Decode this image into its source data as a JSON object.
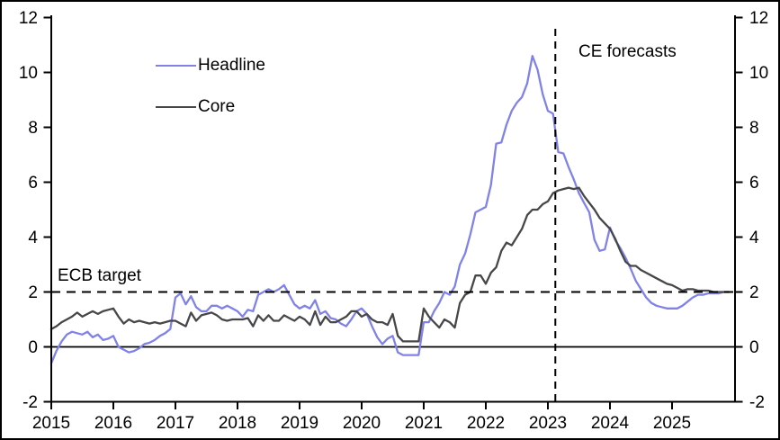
{
  "chart_data": {
    "type": "line",
    "title": "",
    "xlabel": "",
    "ylabel": "",
    "x_unit": "monthly",
    "x_start": "2015-01",
    "x_end": "2025-12",
    "xlim": [
      2015,
      2026.02
    ],
    "ylim": [
      -2,
      12
    ],
    "yticks": [
      -2,
      0,
      2,
      4,
      6,
      8,
      10,
      12
    ],
    "xticks": [
      2015,
      2016,
      2017,
      2018,
      2019,
      2020,
      2021,
      2022,
      2023,
      2024,
      2025
    ],
    "y_axis_sides": "both",
    "grid": false,
    "legend_position": "inside-top-left",
    "series": [
      {
        "name": "Headline",
        "color": "#8082e8",
        "values": [
          -0.6,
          -0.15,
          0.2,
          0.45,
          0.55,
          0.5,
          0.45,
          0.55,
          0.35,
          0.45,
          0.25,
          0.3,
          0.4,
          0.0,
          -0.1,
          -0.2,
          -0.15,
          -0.05,
          0.1,
          0.15,
          0.25,
          0.4,
          0.5,
          0.65,
          1.8,
          1.95,
          1.55,
          1.85,
          1.45,
          1.3,
          1.3,
          1.5,
          1.5,
          1.4,
          1.5,
          1.4,
          1.3,
          1.1,
          1.35,
          1.3,
          1.9,
          2.0,
          2.1,
          2.0,
          2.1,
          2.25,
          1.9,
          1.55,
          1.4,
          1.5,
          1.4,
          1.7,
          1.2,
          1.3,
          1.05,
          1.0,
          0.85,
          0.75,
          1.0,
          1.3,
          1.4,
          1.2,
          0.75,
          0.35,
          0.1,
          0.3,
          0.4,
          -0.2,
          -0.3,
          -0.3,
          -0.3,
          -0.3,
          0.9,
          0.9,
          1.3,
          1.6,
          2.0,
          1.9,
          2.2,
          3.0,
          3.4,
          4.1,
          4.9,
          5.0,
          5.1,
          5.9,
          7.4,
          7.45,
          8.1,
          8.6,
          8.9,
          9.1,
          9.6,
          10.6,
          10.1,
          9.2,
          8.6,
          8.5,
          7.1,
          7.05,
          6.55,
          6.1,
          5.6,
          5.25,
          4.9,
          3.9,
          3.5,
          3.55,
          4.35,
          3.9,
          3.6,
          3.25,
          2.85,
          2.4,
          2.1,
          1.8,
          1.6,
          1.5,
          1.45,
          1.4,
          1.4,
          1.4,
          1.5,
          1.65,
          1.8,
          1.9,
          1.9,
          1.95,
          1.95,
          1.95,
          2.0,
          2.0
        ]
      },
      {
        "name": "Core",
        "color": "#474749",
        "values": [
          0.65,
          0.75,
          0.9,
          1.0,
          1.1,
          1.25,
          1.1,
          1.2,
          1.3,
          1.2,
          1.3,
          1.35,
          1.4,
          1.1,
          0.85,
          1.0,
          0.9,
          0.95,
          0.9,
          0.85,
          0.9,
          0.85,
          0.9,
          0.95,
          0.95,
          0.85,
          0.75,
          1.25,
          0.95,
          1.15,
          1.2,
          1.25,
          1.15,
          1.0,
          0.95,
          1.0,
          1.0,
          1.0,
          1.05,
          0.75,
          1.15,
          0.95,
          1.15,
          0.95,
          0.95,
          1.15,
          1.05,
          0.95,
          1.1,
          1.0,
          0.8,
          1.3,
          0.8,
          1.1,
          0.9,
          0.9,
          1.0,
          1.1,
          1.3,
          1.3,
          1.1,
          1.2,
          1.0,
          0.9,
          0.9,
          0.8,
          1.2,
          0.4,
          0.2,
          0.2,
          0.2,
          0.2,
          1.4,
          1.1,
          0.9,
          0.7,
          1.0,
          0.9,
          0.7,
          1.6,
          1.9,
          2.0,
          2.6,
          2.6,
          2.3,
          2.7,
          2.9,
          3.5,
          3.8,
          3.7,
          4.0,
          4.3,
          4.8,
          5.0,
          5.0,
          5.2,
          5.3,
          5.6,
          5.7,
          5.75,
          5.8,
          5.75,
          5.8,
          5.5,
          5.25,
          5.0,
          4.7,
          4.5,
          4.3,
          3.95,
          3.5,
          3.1,
          2.95,
          2.95,
          2.8,
          2.7,
          2.6,
          2.5,
          2.4,
          2.3,
          2.25,
          2.15,
          2.05,
          2.1,
          2.1,
          2.05,
          2.05,
          2.05,
          2.0,
          2.0,
          2.0,
          2.0
        ]
      }
    ],
    "reference_lines": {
      "ecb_target": {
        "label": "ECB target",
        "y": 2,
        "style": "dashed"
      },
      "zero": {
        "y": 0,
        "style": "solid"
      },
      "forecast_start": {
        "label": "CE forecasts",
        "x": 2023.12,
        "style": "dashed-vertical"
      }
    }
  }
}
